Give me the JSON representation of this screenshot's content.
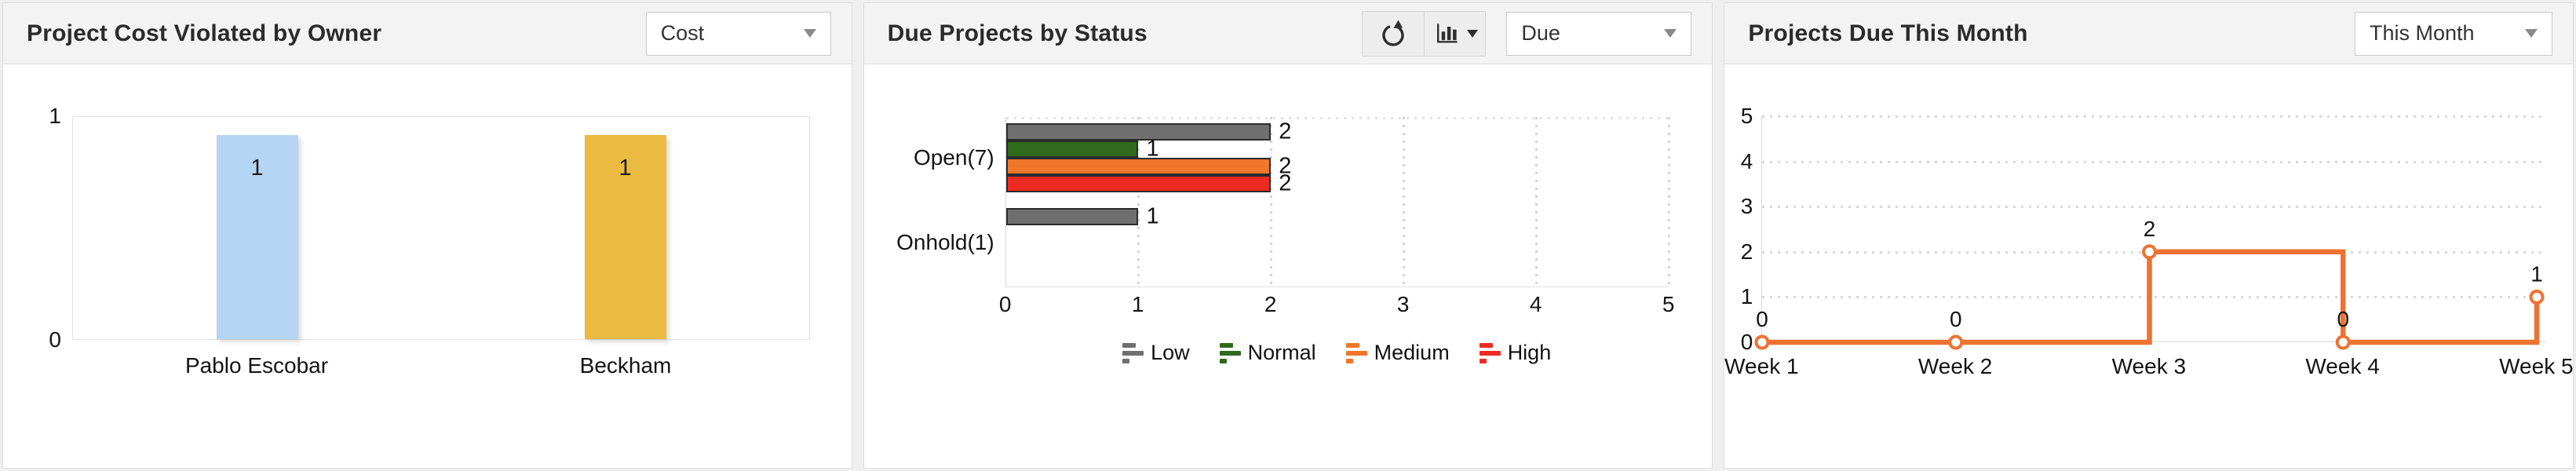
{
  "panels": [
    {
      "title": "Project Cost Violated by Owner",
      "dropdown": {
        "value": "Cost",
        "caret_icon": "caret-down"
      }
    },
    {
      "title": "Due Projects by Status",
      "toolbar": {
        "refresh_icon": "refresh",
        "chart_type_icon": "bar-chart",
        "chart_type_caret_icon": "caret-down"
      },
      "dropdown": {
        "value": "Due",
        "caret_icon": "caret-down"
      }
    },
    {
      "title": "Projects Due This Month",
      "dropdown": {
        "value": "This Month",
        "caret_icon": "caret-down"
      }
    }
  ],
  "colors": {
    "page_bg": "#EFEFEF",
    "card_bg": "#FFFFFF",
    "header_bg": "#F3F3F3",
    "bar_blue": "#B5D5F2",
    "bar_yellow": "#EBBA41",
    "low_gray": "#6F6F6F",
    "normal_green": "#2F6A1D",
    "medium_orange": "#F0762C",
    "high_red": "#EE2B22",
    "line_orange": "#EE7231"
  },
  "chart_data": [
    {
      "type": "bar",
      "title": "Project Cost Violated by Owner",
      "categories": [
        "Pablo Escobar",
        "Beckham"
      ],
      "values": [
        1,
        1
      ],
      "bar_colors": [
        "#B5D5F2",
        "#EBBA41"
      ],
      "ylim": [
        0,
        1
      ],
      "yticks": [
        0,
        1
      ],
      "grid": false,
      "data_labels": true,
      "legend_position": "none"
    },
    {
      "type": "bar",
      "orientation": "horizontal",
      "title": "Due Projects by Status",
      "categories": [
        "Open(7)",
        "Onhold(1)"
      ],
      "series": [
        {
          "name": "Low",
          "color": "#6F6F6F",
          "values": [
            2,
            1
          ]
        },
        {
          "name": "Normal",
          "color": "#2F6A1D",
          "values": [
            1,
            null
          ]
        },
        {
          "name": "Medium",
          "color": "#F0762C",
          "values": [
            2,
            null
          ]
        },
        {
          "name": "High",
          "color": "#EE2B22",
          "values": [
            2,
            null
          ]
        }
      ],
      "xlim": [
        0,
        5
      ],
      "xticks": [
        0,
        1,
        2,
        3,
        4,
        5
      ],
      "grid": "dotted-vertical",
      "data_labels": true,
      "legend_position": "bottom"
    },
    {
      "type": "line",
      "line_style": "step-after",
      "title": "Projects Due This Month",
      "categories": [
        "Week 1",
        "Week 2",
        "Week 3",
        "Week 4",
        "Week 5"
      ],
      "values": [
        0,
        0,
        2,
        0,
        1
      ],
      "color": "#EE7231",
      "marker": "open-circle",
      "ylim": [
        0,
        5
      ],
      "yticks": [
        0,
        1,
        2,
        3,
        4,
        5
      ],
      "grid": "dotted-horizontal",
      "data_labels": true,
      "legend_position": "none"
    }
  ]
}
